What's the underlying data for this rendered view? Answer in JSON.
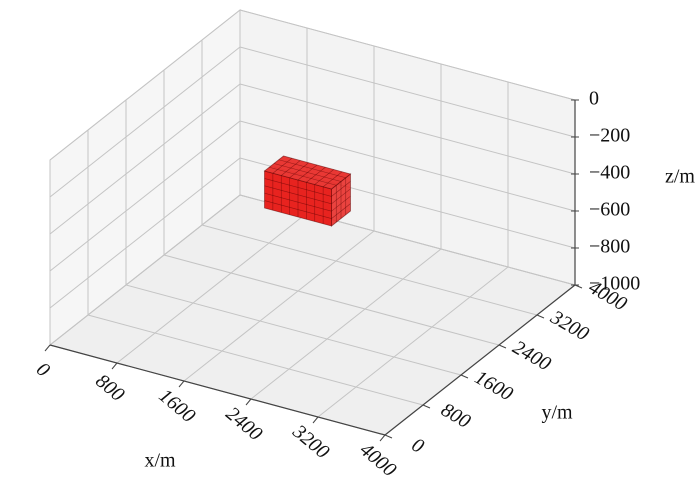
{
  "chart_data": {
    "type": "voxel3d",
    "x_label": "x/m",
    "y_label": "y/m",
    "z_label": "z/m",
    "xlim": [
      0,
      4000
    ],
    "xticks": [
      0,
      800,
      1600,
      2400,
      3200,
      4000
    ],
    "ylim": [
      0,
      4000
    ],
    "yticks": [
      0,
      800,
      1600,
      2400,
      3200,
      4000
    ],
    "zlim": [
      -1000,
      0
    ],
    "zticks": [
      0,
      {
        "value": -200,
        "label": "−200"
      },
      {
        "value": -400,
        "label": "−400"
      },
      {
        "value": -600,
        "label": "−600"
      },
      {
        "value": -800,
        "label": "−800"
      },
      {
        "value": -1000,
        "label": "−1000"
      }
    ],
    "grid": true,
    "voxels": [
      {
        "x": [
          1200,
          2000
        ],
        "y": [
          2400,
          2800
        ],
        "z": [
          -600,
          -400
        ],
        "color": "#e8231f"
      }
    ]
  }
}
